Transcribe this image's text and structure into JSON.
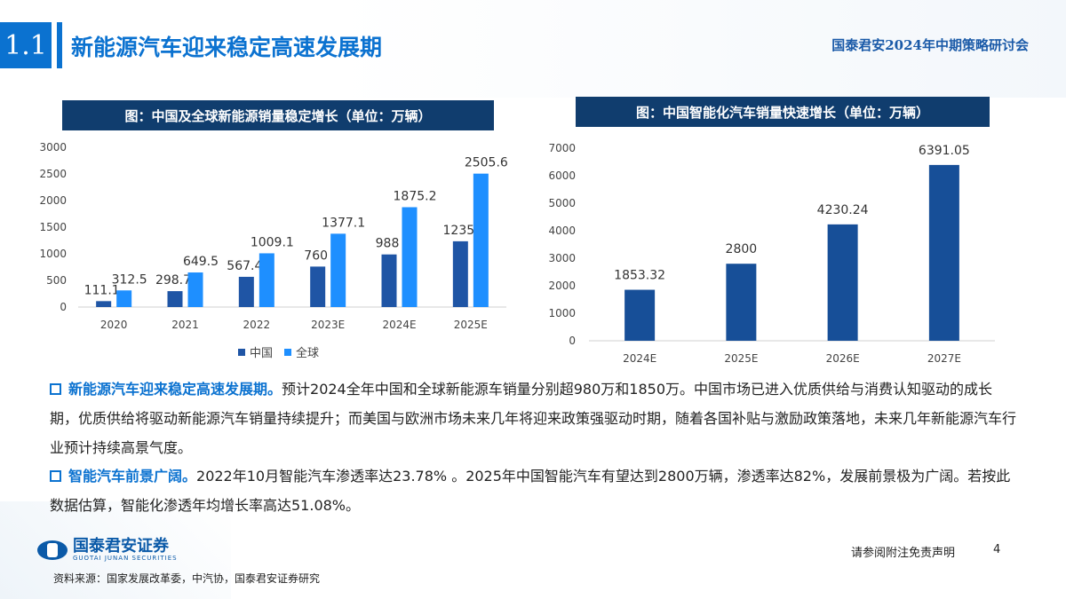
{
  "header": {
    "section_number": "1.1",
    "title": "新能源汽车迎来稳定高速发展期",
    "org": "国泰君安2024年中期策略研讨会"
  },
  "colors": {
    "china": "#1f55a5",
    "global": "#1e8fff",
    "single": "#174f98",
    "header_bg": "#103d6e",
    "accent": "#0b72d0"
  },
  "chart_data": [
    {
      "type": "bar",
      "title": "图：中国及全球新能源销量稳定增长（单位：万辆）",
      "categories": [
        "2020",
        "2021",
        "2022",
        "2023E",
        "2024E",
        "2025E"
      ],
      "series": [
        {
          "name": "中国",
          "values": [
            111.1,
            298.7,
            567.4,
            760,
            988,
            1235
          ]
        },
        {
          "name": "全球",
          "values": [
            312.5,
            649.5,
            1009.1,
            1377.1,
            1875.2,
            2505.6
          ]
        }
      ],
      "labels": [
        [
          "111.1",
          "298.7",
          "567.4",
          "760",
          "988",
          "1235"
        ],
        [
          "312.5",
          "649.5",
          "1009.1",
          "1377.1",
          "1875.2",
          "2505.6"
        ]
      ],
      "yticks": [
        "0",
        "500",
        "1000",
        "1500",
        "2000",
        "2500",
        "3000"
      ],
      "ylim": [
        0,
        3000
      ],
      "legend": "bottom",
      "grid": false
    },
    {
      "type": "bar",
      "title": "图：中国智能化汽车销量快速增长（单位：万辆）",
      "categories": [
        "2024E",
        "2025E",
        "2026E",
        "2027E"
      ],
      "values": [
        1853.32,
        2800,
        4230.24,
        6391.05
      ],
      "labels": [
        "1853.32",
        "2800",
        "4230.24",
        "6391.05"
      ],
      "yticks": [
        "0",
        "1000",
        "2000",
        "3000",
        "4000",
        "5000",
        "6000",
        "7000"
      ],
      "ylim": [
        0,
        7000
      ],
      "grid": false
    }
  ],
  "body": {
    "p1_head": "新能源汽车迎来稳定高速发展期。",
    "p1_text": "预计2024全年中国和全球新能源车销量分别超980万和1850万。中国市场已进入优质供给与消费认知驱动的成长期，优质供给将驱动新能源汽车销量持续提升；而美国与欧洲市场未来几年将迎来政策强驱动时期，随着各国补贴与激励政策落地，未来几年新能源汽车行业预计持续高景气度。",
    "p2_head": "智能汽车前景广阔。",
    "p2_text": "2022年10月智能汽车渗透率达23.78% 。2025年中国智能汽车有望达到2800万辆，渗透率达82%，发展前景极为广阔。若按此数据估算，智能化渗透年均增长率高达51.08%。"
  },
  "footer": {
    "logo_cn": "国泰君安证券",
    "logo_en": "GUOTAI JUNAN SECURITIES",
    "source": "资料来源：国家发展改革委，中汽协，国泰君安证券研究",
    "disclaimer": "请参阅附注免责声明",
    "page": "4"
  }
}
